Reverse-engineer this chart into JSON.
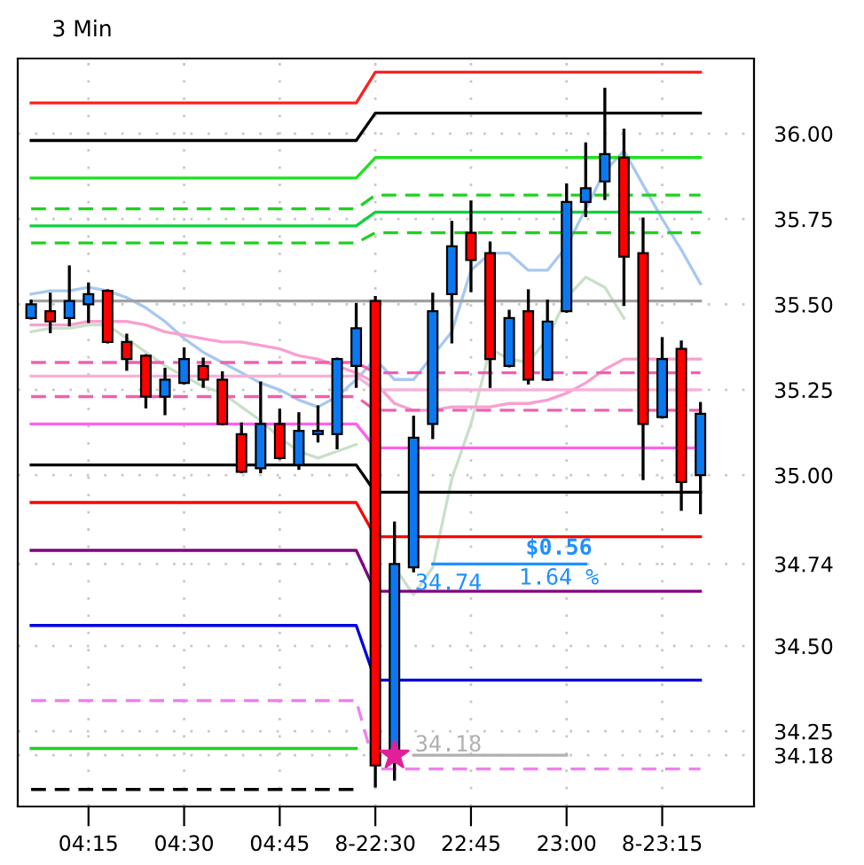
{
  "chart_data": {
    "type": "candlestick",
    "title": "3 Min",
    "categories": [
      null,
      null,
      null,
      "04:15",
      null,
      null,
      null,
      null,
      "04:30",
      null,
      null,
      null,
      null,
      "04:45",
      null,
      null,
      null,
      null,
      "8-22:30",
      null,
      null,
      null,
      null,
      "22:45",
      null,
      null,
      null,
      null,
      "23:00",
      null,
      null,
      null,
      null,
      "8-23:15",
      null,
      null
    ],
    "ohlc": [
      [
        35.46,
        35.51,
        35.46,
        35.5
      ],
      [
        35.48,
        35.53,
        35.42,
        35.45
      ],
      [
        35.46,
        35.61,
        35.44,
        35.51
      ],
      [
        35.5,
        35.56,
        35.45,
        35.53
      ],
      [
        35.54,
        35.54,
        35.39,
        35.39
      ],
      [
        35.39,
        35.41,
        35.31,
        35.34
      ],
      [
        35.35,
        35.35,
        35.2,
        35.23
      ],
      [
        35.23,
        35.31,
        35.18,
        35.28
      ],
      [
        35.27,
        35.37,
        35.27,
        35.34
      ],
      [
        35.32,
        35.34,
        35.26,
        35.28
      ],
      [
        35.28,
        35.3,
        35.15,
        35.15
      ],
      [
        35.12,
        35.15,
        35.01,
        35.01
      ],
      [
        35.02,
        35.27,
        35.01,
        35.15
      ],
      [
        35.15,
        35.19,
        35.05,
        35.05
      ],
      [
        35.03,
        35.18,
        35.02,
        35.13
      ],
      [
        35.12,
        35.2,
        35.1,
        35.13
      ],
      [
        35.12,
        35.34,
        35.08,
        35.34
      ],
      [
        35.32,
        35.5,
        35.26,
        35.43
      ],
      [
        35.51,
        35.52,
        34.09,
        34.15
      ],
      [
        34.18,
        34.86,
        34.11,
        34.74
      ],
      [
        34.73,
        35.17,
        34.72,
        35.11
      ],
      [
        35.15,
        35.53,
        35.11,
        35.48
      ],
      [
        35.53,
        35.74,
        35.39,
        35.67
      ],
      [
        35.71,
        35.8,
        35.54,
        35.63
      ],
      [
        35.65,
        35.68,
        35.26,
        35.34
      ],
      [
        35.32,
        35.48,
        35.32,
        35.46
      ],
      [
        35.48,
        35.54,
        35.27,
        35.28
      ],
      [
        35.28,
        35.51,
        35.28,
        35.45
      ],
      [
        35.48,
        35.85,
        35.48,
        35.8
      ],
      [
        35.8,
        35.97,
        35.76,
        35.84
      ],
      [
        35.86,
        36.13,
        35.81,
        35.94
      ],
      [
        35.93,
        36.01,
        35.5,
        35.64
      ],
      [
        35.65,
        35.75,
        34.99,
        35.15
      ],
      [
        35.17,
        35.4,
        35.17,
        35.34
      ],
      [
        35.37,
        35.39,
        34.9,
        34.98
      ],
      [
        35.0,
        35.21,
        34.89,
        35.18
      ]
    ],
    "colors": [
      "#0a78f0",
      "#ff0000",
      "#0a78f0",
      "#0a78f0",
      "#ff0000",
      "#ff0000",
      "#ff0000",
      "#0a78f0",
      "#0a78f0",
      "#ff0000",
      "#ff0000",
      "#ff0000",
      "#0a78f0",
      "#ff0000",
      "#0a78f0",
      "#0a78f0",
      "#0a78f0",
      "#0a78f0",
      "#ff0000",
      "#0a78f0",
      "#0a78f0",
      "#0a78f0",
      "#0a78f0",
      "#ff0000",
      "#ff0000",
      "#0a78f0",
      "#ff0000",
      "#0a78f0",
      "#0a78f0",
      "#0a78f0",
      "#0a78f0",
      "#ff0000",
      "#ff0000",
      "#0a78f0",
      "#ff0000",
      "#0a78f0"
    ],
    "series": [
      {
        "type": "line",
        "color": "#a8c8f0",
        "values": [
          35.53,
          35.54,
          35.54,
          35.55,
          35.54,
          35.52,
          35.49,
          35.45,
          35.4,
          35.36,
          35.33,
          35.3,
          35.27,
          35.25,
          35.22,
          35.2,
          35.23,
          35.28,
          35.34,
          35.28,
          35.28,
          35.35,
          35.42,
          35.6,
          35.65,
          35.65,
          35.6,
          35.6,
          35.67,
          35.78,
          35.89,
          35.95,
          35.85,
          35.75,
          35.66,
          35.56
        ]
      },
      {
        "type": "line",
        "color": "#c8e0c8",
        "values": [
          35.42,
          35.43,
          35.43,
          35.44,
          35.44,
          35.4,
          35.36,
          35.32,
          35.29,
          35.26,
          35.24,
          35.2,
          35.16,
          35.11,
          35.07,
          35.05,
          35.07,
          35.09,
          null,
          34.73,
          34.65,
          34.73,
          34.99,
          35.15,
          35.37,
          35.34,
          35.33,
          35.4,
          35.52,
          35.58,
          35.55,
          35.46,
          null,
          null,
          null,
          null
        ]
      },
      {
        "type": "line",
        "color": "#f8a0d0",
        "values": [
          35.44,
          35.44,
          35.44,
          35.45,
          35.45,
          35.45,
          35.44,
          35.42,
          35.41,
          35.4,
          35.39,
          35.39,
          35.38,
          35.37,
          35.35,
          35.34,
          35.32,
          35.3,
          35.27,
          35.21,
          35.19,
          35.19,
          35.2,
          35.2,
          35.2,
          35.21,
          35.21,
          35.22,
          35.24,
          35.27,
          35.31,
          35.34,
          35.34,
          35.34,
          35.34,
          35.34
        ]
      },
      {
        "type": "line",
        "color": "#ff2020",
        "line_style": "solid",
        "values": [
          36.09,
          36.09,
          36.09,
          36.09,
          36.09,
          36.09,
          36.09,
          36.09,
          36.09,
          36.09,
          36.09,
          36.09,
          36.09,
          36.09,
          36.09,
          36.09,
          36.09,
          36.09,
          36.18,
          36.18,
          36.18,
          36.18,
          36.18,
          36.18,
          36.18,
          36.18,
          36.18,
          36.18,
          36.18,
          36.18,
          36.18,
          36.18,
          36.18,
          36.18,
          36.18,
          36.18
        ]
      },
      {
        "type": "line",
        "color": "#000000",
        "line_style": "solid",
        "values": [
          35.98,
          35.98,
          35.98,
          35.98,
          35.98,
          35.98,
          35.98,
          35.98,
          35.98,
          35.98,
          35.98,
          35.98,
          35.98,
          35.98,
          35.98,
          35.98,
          35.98,
          35.98,
          36.06,
          36.06,
          36.06,
          36.06,
          36.06,
          36.06,
          36.06,
          36.06,
          36.06,
          36.06,
          36.06,
          36.06,
          36.06,
          36.06,
          36.06,
          36.06,
          36.06,
          36.06
        ]
      },
      {
        "type": "line",
        "color": "#20e020",
        "line_style": "solid",
        "values": [
          35.87,
          35.87,
          35.87,
          35.87,
          35.87,
          35.87,
          35.87,
          35.87,
          35.87,
          35.87,
          35.87,
          35.87,
          35.87,
          35.87,
          35.87,
          35.87,
          35.87,
          35.87,
          35.93,
          35.93,
          35.93,
          35.93,
          35.93,
          35.93,
          35.93,
          35.93,
          35.93,
          35.93,
          35.93,
          35.93,
          35.93,
          35.93,
          35.93,
          35.93,
          35.93,
          35.93
        ]
      },
      {
        "type": "line",
        "color": "#20d020",
        "line_style": "dashed",
        "values": [
          35.78,
          35.78,
          35.78,
          35.78,
          35.78,
          35.78,
          35.78,
          35.78,
          35.78,
          35.78,
          35.78,
          35.78,
          35.78,
          35.78,
          35.78,
          35.78,
          35.78,
          35.78,
          35.82,
          35.82,
          35.82,
          35.82,
          35.82,
          35.82,
          35.82,
          35.82,
          35.82,
          35.82,
          35.82,
          35.82,
          35.82,
          35.82,
          35.82,
          35.82,
          35.82,
          35.82
        ]
      },
      {
        "type": "line",
        "color": "#10d040",
        "line_style": "solid",
        "values": [
          35.73,
          35.73,
          35.73,
          35.73,
          35.73,
          35.73,
          35.73,
          35.73,
          35.73,
          35.73,
          35.73,
          35.73,
          35.73,
          35.73,
          35.73,
          35.73,
          35.73,
          35.73,
          35.77,
          35.77,
          35.77,
          35.77,
          35.77,
          35.77,
          35.77,
          35.77,
          35.77,
          35.77,
          35.77,
          35.77,
          35.77,
          35.77,
          35.77,
          35.77,
          35.77,
          35.77
        ]
      },
      {
        "type": "line",
        "color": "#20d020",
        "line_style": "dashed",
        "values": [
          35.68,
          35.68,
          35.68,
          35.68,
          35.68,
          35.68,
          35.68,
          35.68,
          35.68,
          35.68,
          35.68,
          35.68,
          35.68,
          35.68,
          35.68,
          35.68,
          35.68,
          35.68,
          35.71,
          35.71,
          35.71,
          35.71,
          35.71,
          35.71,
          35.71,
          35.71,
          35.71,
          35.71,
          35.71,
          35.71,
          35.71,
          35.71,
          35.71,
          35.71,
          35.71,
          35.71
        ]
      },
      {
        "type": "line",
        "color": "#a0a0a0",
        "line_style": "solid",
        "values": [
          35.51,
          35.51,
          35.51,
          35.51,
          35.51,
          35.51,
          35.51,
          35.51,
          35.51,
          35.51,
          35.51,
          35.51,
          35.51,
          35.51,
          35.51,
          35.51,
          35.51,
          35.51,
          35.51,
          35.51,
          35.51,
          35.51,
          35.51,
          35.51,
          35.51,
          35.51,
          35.51,
          35.51,
          35.51,
          35.51,
          35.51,
          35.51,
          35.51,
          35.51,
          35.51,
          35.51
        ]
      },
      {
        "type": "line",
        "color": "#f060b0",
        "line_style": "dashed",
        "values": [
          35.33,
          35.33,
          35.33,
          35.33,
          35.33,
          35.33,
          35.33,
          35.33,
          35.33,
          35.33,
          35.33,
          35.33,
          35.33,
          35.33,
          35.33,
          35.33,
          35.33,
          35.33,
          35.3,
          35.3,
          35.3,
          35.3,
          35.3,
          35.3,
          35.3,
          35.3,
          35.3,
          35.3,
          35.3,
          35.3,
          35.3,
          35.3,
          35.3,
          35.3,
          35.3,
          35.3
        ]
      },
      {
        "type": "line",
        "color": "#f8b0d8",
        "line_style": "solid",
        "values": [
          35.29,
          35.29,
          35.29,
          35.29,
          35.29,
          35.29,
          35.29,
          35.29,
          35.29,
          35.29,
          35.29,
          35.29,
          35.29,
          35.29,
          35.29,
          35.29,
          35.29,
          35.29,
          35.25,
          35.25,
          35.25,
          35.25,
          35.25,
          35.25,
          35.25,
          35.25,
          35.25,
          35.25,
          35.25,
          35.25,
          35.25,
          35.25,
          35.25,
          35.25,
          35.25,
          35.25
        ]
      },
      {
        "type": "line",
        "color": "#f060b0",
        "line_style": "dashed",
        "values": [
          35.23,
          35.23,
          35.23,
          35.23,
          35.23,
          35.23,
          35.23,
          35.23,
          35.23,
          35.23,
          35.23,
          35.23,
          35.23,
          35.23,
          35.23,
          35.23,
          35.23,
          35.23,
          35.19,
          35.19,
          35.19,
          35.19,
          35.19,
          35.19,
          35.19,
          35.19,
          35.19,
          35.19,
          35.19,
          35.19,
          35.19,
          35.19,
          35.19,
          35.19,
          35.19,
          35.19
        ]
      },
      {
        "type": "line",
        "color": "#ff60f0",
        "line_style": "solid",
        "values": [
          35.15,
          35.15,
          35.15,
          35.15,
          35.15,
          35.15,
          35.15,
          35.15,
          35.15,
          35.15,
          35.15,
          35.15,
          35.15,
          35.15,
          35.15,
          35.15,
          35.15,
          35.15,
          35.08,
          35.08,
          35.08,
          35.08,
          35.08,
          35.08,
          35.08,
          35.08,
          35.08,
          35.08,
          35.08,
          35.08,
          35.08,
          35.08,
          35.08,
          35.08,
          35.08,
          35.08
        ]
      },
      {
        "type": "line",
        "color": "#000000",
        "line_style": "solid",
        "values": [
          35.03,
          35.03,
          35.03,
          35.03,
          35.03,
          35.03,
          35.03,
          35.03,
          35.03,
          35.03,
          35.03,
          35.03,
          35.03,
          35.03,
          35.03,
          35.03,
          35.03,
          35.03,
          34.95,
          34.95,
          34.95,
          34.95,
          34.95,
          34.95,
          34.95,
          34.95,
          34.95,
          34.95,
          34.95,
          34.95,
          34.95,
          34.95,
          34.95,
          34.95,
          34.95,
          34.95
        ]
      },
      {
        "type": "line",
        "color": "#ff0000",
        "line_style": "solid",
        "values": [
          34.92,
          34.92,
          34.92,
          34.92,
          34.92,
          34.92,
          34.92,
          34.92,
          34.92,
          34.92,
          34.92,
          34.92,
          34.92,
          34.92,
          34.92,
          34.92,
          34.92,
          34.92,
          34.82,
          34.82,
          34.82,
          34.82,
          34.82,
          34.82,
          34.82,
          34.82,
          34.82,
          34.82,
          34.82,
          34.82,
          34.82,
          34.82,
          34.82,
          34.82,
          34.82,
          34.82
        ]
      },
      {
        "type": "line",
        "color": "#800080",
        "line_style": "solid",
        "values": [
          34.78,
          34.78,
          34.78,
          34.78,
          34.78,
          34.78,
          34.78,
          34.78,
          34.78,
          34.78,
          34.78,
          34.78,
          34.78,
          34.78,
          34.78,
          34.78,
          34.78,
          34.78,
          34.66,
          34.66,
          34.66,
          34.66,
          34.66,
          34.66,
          34.66,
          34.66,
          34.66,
          34.66,
          34.66,
          34.66,
          34.66,
          34.66,
          34.66,
          34.66,
          34.66,
          34.66
        ]
      },
      {
        "type": "line",
        "color": "#0000e0",
        "line_style": "solid",
        "values": [
          34.56,
          34.56,
          34.56,
          34.56,
          34.56,
          34.56,
          34.56,
          34.56,
          34.56,
          34.56,
          34.56,
          34.56,
          34.56,
          34.56,
          34.56,
          34.56,
          34.56,
          34.56,
          34.4,
          34.4,
          34.4,
          34.4,
          34.4,
          34.4,
          34.4,
          34.4,
          34.4,
          34.4,
          34.4,
          34.4,
          34.4,
          34.4,
          34.4,
          34.4,
          34.4,
          34.4
        ]
      },
      {
        "type": "line",
        "color": "#f080f0",
        "line_style": "dashed",
        "values": [
          34.34,
          34.34,
          34.34,
          34.34,
          34.34,
          34.34,
          34.34,
          34.34,
          34.34,
          34.34,
          34.34,
          34.34,
          34.34,
          34.34,
          34.34,
          34.34,
          34.34,
          34.34,
          34.14,
          34.14,
          34.14,
          34.14,
          34.14,
          34.14,
          34.14,
          34.14,
          34.14,
          34.14,
          34.14,
          34.14,
          34.14,
          34.14,
          34.14,
          34.14,
          34.14,
          34.14
        ]
      },
      {
        "type": "line",
        "color": "#20d020",
        "line_style": "solid",
        "values": [
          34.2,
          34.2,
          34.2,
          34.2,
          34.2,
          34.2,
          34.2,
          34.2,
          34.2,
          34.2,
          34.2,
          34.2,
          34.2,
          34.2,
          34.2,
          34.2,
          34.2,
          34.2,
          null,
          null,
          null,
          null,
          null,
          null,
          null,
          null,
          null,
          null,
          null,
          null,
          null,
          null,
          null,
          null,
          null,
          null
        ]
      },
      {
        "type": "line",
        "color": "#000000",
        "line_style": "dashed",
        "values": [
          34.08,
          34.08,
          34.08,
          34.08,
          34.08,
          34.08,
          34.08,
          34.08,
          34.08,
          34.08,
          34.08,
          34.08,
          34.08,
          34.08,
          34.08,
          34.08,
          34.08,
          34.08,
          null,
          null,
          null,
          null,
          null,
          null,
          null,
          null,
          null,
          null,
          null,
          null,
          null,
          null,
          null,
          null,
          null,
          null
        ]
      },
      {
        "type": "line",
        "color": "#1e90ff",
        "line_style": "solid",
        "values": [
          null,
          null,
          null,
          null,
          null,
          null,
          null,
          null,
          null,
          null,
          null,
          null,
          null,
          null,
          null,
          null,
          null,
          null,
          null,
          null,
          null,
          34.74,
          34.74,
          34.74,
          34.74,
          34.74,
          34.74,
          34.74,
          34.74,
          34.74,
          null,
          null,
          null,
          null,
          null,
          null
        ]
      },
      {
        "type": "line",
        "color": "#b0b0b0",
        "line_style": "solid",
        "values": [
          null,
          null,
          null,
          null,
          null,
          null,
          null,
          null,
          null,
          null,
          null,
          null,
          null,
          null,
          null,
          null,
          null,
          null,
          null,
          null,
          34.18,
          34.18,
          34.18,
          34.18,
          34.18,
          34.18,
          34.18,
          34.18,
          34.18,
          null,
          null,
          null,
          null,
          null,
          null,
          null
        ]
      },
      {
        "type": "scatter",
        "color": "#e0209a",
        "marker": "star",
        "values": [
          null,
          null,
          null,
          null,
          null,
          null,
          null,
          null,
          null,
          null,
          null,
          null,
          null,
          null,
          null,
          null,
          null,
          null,
          null,
          34.18,
          null,
          null,
          null,
          null,
          null,
          null,
          null,
          null,
          null,
          null,
          null,
          null,
          null,
          null,
          null,
          null
        ]
      }
    ],
    "annotations": [
      "$0.56",
      "1.64 %",
      {
        "text": "34.74",
        "y": 34.74
      },
      "34.18"
    ],
    "ylim": [
      34.03,
      36.22
    ],
    "yticks": [
      {
        "value": 34.18,
        "label": "34.18"
      },
      {
        "value": 34.25,
        "label": "34.25"
      },
      {
        "value": 34.5,
        "label": "34.50"
      },
      {
        "value": 34.74,
        "label": "34.74"
      },
      {
        "value": 35,
        "label": "35.00"
      },
      {
        "value": 35.25,
        "label": "35.25"
      },
      {
        "value": 35.5,
        "label": "35.50"
      },
      {
        "value": 35.75,
        "label": "35.75"
      },
      {
        "value": 36,
        "label": "36.00"
      }
    ],
    "grid": true
  }
}
